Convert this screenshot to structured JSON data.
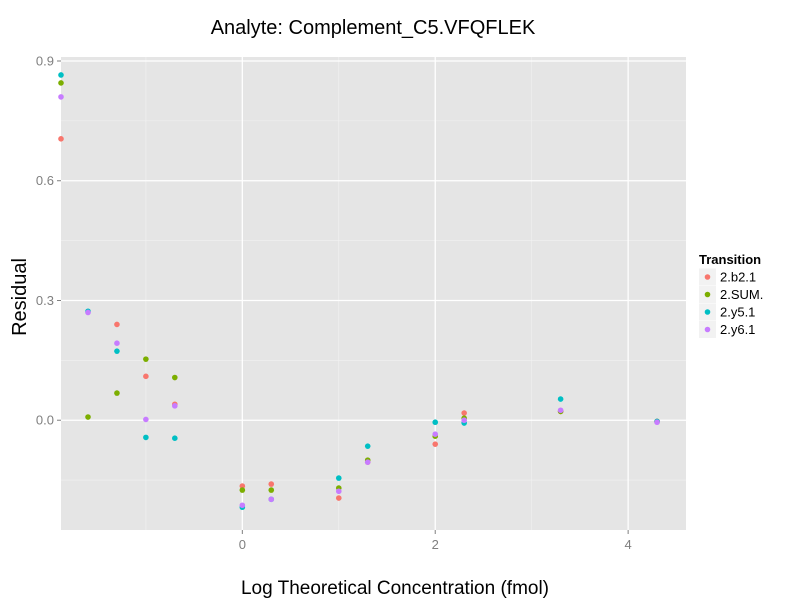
{
  "chart_data": {
    "type": "scatter",
    "title": "Analyte: Complement_C5.VFQFLEK",
    "xlabel": "Log Theoretical Concentration (fmol)",
    "ylabel": "Residual",
    "xlim": [
      -1.88,
      4.6
    ],
    "ylim": [
      -0.275,
      0.91
    ],
    "x_ticks": [
      0,
      2,
      4
    ],
    "x_tick_labels": [
      "0",
      "2",
      "4"
    ],
    "y_ticks": [
      0.0,
      0.3,
      0.6,
      0.9
    ],
    "y_tick_labels": [
      "0.0",
      "0.3",
      "0.6",
      "0.9"
    ],
    "grid": true,
    "legend": {
      "title": "Transition",
      "position": "right"
    },
    "series": [
      {
        "name": "2.b2.1",
        "color": "#F8766D",
        "points": [
          [
            -1.88,
            0.705
          ],
          [
            -1.3,
            0.24
          ],
          [
            -1.0,
            0.11
          ],
          [
            -0.7,
            0.04
          ],
          [
            0.0,
            -0.165
          ],
          [
            0.3,
            -0.16
          ],
          [
            1.0,
            -0.195
          ],
          [
            1.3,
            -0.105
          ],
          [
            2.0,
            -0.06
          ],
          [
            2.3,
            0.018
          ],
          [
            3.3,
            0.022
          ],
          [
            4.3,
            -0.003
          ]
        ]
      },
      {
        "name": "2.SUM.",
        "color": "#7CAE00",
        "points": [
          [
            -1.88,
            0.845
          ],
          [
            -1.6,
            0.008
          ],
          [
            -1.3,
            0.068
          ],
          [
            -1.0,
            0.153
          ],
          [
            -0.7,
            0.107
          ],
          [
            0.0,
            -0.175
          ],
          [
            0.3,
            -0.175
          ],
          [
            1.0,
            -0.17
          ],
          [
            1.3,
            -0.1
          ],
          [
            2.0,
            -0.04
          ],
          [
            2.3,
            0.005
          ],
          [
            3.3,
            0.022
          ],
          [
            4.3,
            -0.003
          ]
        ]
      },
      {
        "name": "2.y5.1",
        "color": "#00BFC4",
        "points": [
          [
            -1.88,
            0.865
          ],
          [
            -1.6,
            0.273
          ],
          [
            -1.3,
            0.173
          ],
          [
            -1.0,
            -0.043
          ],
          [
            -0.7,
            -0.045
          ],
          [
            0.0,
            -0.218
          ],
          [
            0.3,
            -0.198
          ],
          [
            1.0,
            -0.145
          ],
          [
            1.3,
            -0.065
          ],
          [
            2.0,
            -0.005
          ],
          [
            2.3,
            -0.007
          ],
          [
            3.3,
            0.053
          ],
          [
            4.3,
            -0.003
          ]
        ]
      },
      {
        "name": "2.y6.1",
        "color": "#C77CFF",
        "points": [
          [
            -1.88,
            0.81
          ],
          [
            -1.6,
            0.27
          ],
          [
            -1.3,
            0.193
          ],
          [
            -1.0,
            0.002
          ],
          [
            -0.7,
            0.036
          ],
          [
            0.0,
            -0.213
          ],
          [
            0.3,
            -0.198
          ],
          [
            1.0,
            -0.178
          ],
          [
            1.3,
            -0.105
          ],
          [
            2.0,
            -0.035
          ],
          [
            2.3,
            0.0
          ],
          [
            3.3,
            0.025
          ],
          [
            4.3,
            -0.005
          ]
        ]
      }
    ]
  }
}
